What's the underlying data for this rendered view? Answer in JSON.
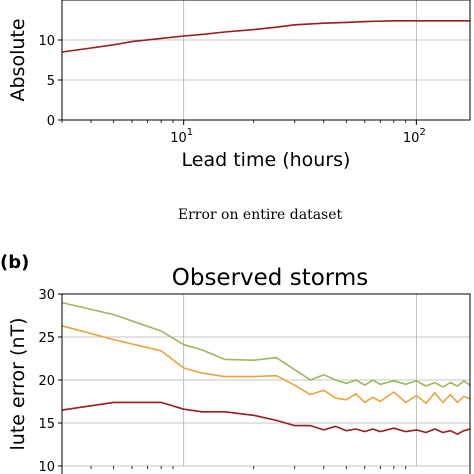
{
  "caption": "Error on entire dataset",
  "panel_label": "(b)",
  "chart_data": [
    {
      "type": "line",
      "title": "",
      "xlabel": "Lead time (hours)",
      "ylabel": "Absolute",
      "xscale": "log",
      "xlim": [
        3,
        170
      ],
      "ylim": [
        0,
        15
      ],
      "grid": true,
      "x_ticks": [
        {
          "value": 10,
          "base": "10",
          "exp": "1"
        },
        {
          "value": 100,
          "base": "10",
          "exp": "2"
        }
      ],
      "y_ticks": [
        0,
        5,
        10
      ],
      "series": [
        {
          "color": "#9b1c1f",
          "x": [
            3,
            4,
            5,
            6,
            8,
            10,
            12,
            15,
            20,
            25,
            30,
            40,
            50,
            60,
            80,
            100,
            140,
            170
          ],
          "y": [
            8.5,
            9.0,
            9.4,
            9.8,
            10.2,
            10.5,
            10.7,
            11.0,
            11.3,
            11.6,
            11.9,
            12.1,
            12.2,
            12.3,
            12.4,
            12.4,
            12.4,
            12.4
          ]
        }
      ]
    },
    {
      "type": "line",
      "title": "Observed storms",
      "xlabel": "",
      "ylabel": "lute error (nT)",
      "xscale": "log",
      "xlim": [
        3,
        170
      ],
      "ylim": [
        10,
        30
      ],
      "grid": true,
      "y_ticks": [
        10,
        15,
        20,
        25,
        30
      ],
      "series": [
        {
          "color": "#9bb85a",
          "x": [
            3,
            5,
            8,
            10,
            12,
            15,
            20,
            25,
            30,
            35,
            40,
            45,
            50,
            55,
            60,
            65,
            70,
            80,
            90,
            100,
            110,
            120,
            130,
            140,
            150,
            160,
            170
          ],
          "y": [
            29.0,
            27.6,
            25.7,
            24.1,
            23.5,
            22.4,
            22.3,
            22.6,
            21.2,
            20.0,
            20.6,
            20.0,
            19.6,
            20.0,
            19.4,
            20.0,
            19.5,
            19.9,
            19.5,
            19.9,
            19.3,
            19.7,
            19.2,
            19.7,
            19.3,
            19.9,
            19.4
          ]
        },
        {
          "color": "#e8a43d",
          "x": [
            3,
            5,
            8,
            10,
            12,
            15,
            20,
            25,
            30,
            35,
            40,
            45,
            50,
            55,
            60,
            65,
            70,
            80,
            90,
            100,
            110,
            120,
            130,
            140,
            150,
            160,
            170
          ],
          "y": [
            26.3,
            24.7,
            23.4,
            21.4,
            20.8,
            20.4,
            20.4,
            20.5,
            19.4,
            18.3,
            18.8,
            17.9,
            17.7,
            18.4,
            17.4,
            18.0,
            17.5,
            18.6,
            17.4,
            18.2,
            17.3,
            18.5,
            17.4,
            18.3,
            17.4,
            18.1,
            17.8
          ]
        },
        {
          "color": "#9b1c1f",
          "x": [
            3,
            5,
            8,
            10,
            12,
            15,
            20,
            25,
            30,
            35,
            40,
            45,
            50,
            55,
            60,
            65,
            70,
            80,
            90,
            100,
            110,
            120,
            130,
            140,
            150,
            160,
            170
          ],
          "y": [
            16.5,
            17.4,
            17.4,
            16.6,
            16.3,
            16.3,
            15.9,
            15.3,
            14.7,
            14.7,
            14.2,
            14.6,
            14.1,
            14.3,
            14.0,
            14.3,
            14.0,
            14.4,
            14.0,
            14.2,
            13.9,
            14.3,
            13.9,
            14.1,
            13.7,
            14.1,
            14.3
          ]
        }
      ]
    }
  ]
}
